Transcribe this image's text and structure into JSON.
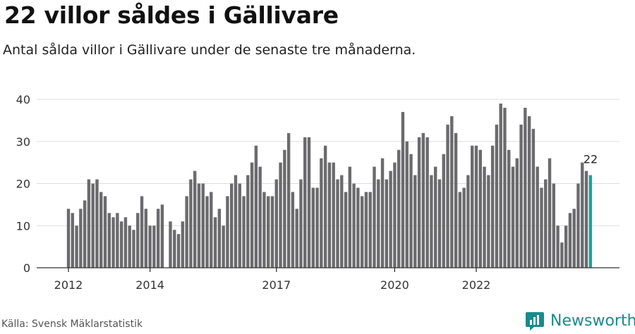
{
  "header": {
    "title": "22 villor såldes i Gällivare",
    "subtitle": "Antal sålda villor i Gällivare under de senaste tre månaderna."
  },
  "footer": {
    "source": "Källa: Svensk Mäklarstatistik",
    "brand": "Newsworthy"
  },
  "colors": {
    "bar": "#6b6b6e",
    "highlight": "#1aa39b",
    "grid": "#dddddd",
    "axis": "#333333",
    "brand": "#1a8a8a"
  },
  "chart_data": {
    "type": "bar",
    "title": "22 villor såldes i Gällivare",
    "xlabel": "",
    "ylabel": "",
    "ylim": [
      0,
      40
    ],
    "yticks": [
      0,
      10,
      20,
      30,
      40
    ],
    "xtick_labels": [
      {
        "label": "2012",
        "index": 0
      },
      {
        "label": "2014",
        "index": 20
      },
      {
        "label": "2017",
        "index": 51
      },
      {
        "label": "2020",
        "index": 80
      },
      {
        "label": "2022",
        "index": 100
      }
    ],
    "values": [
      14,
      13,
      10,
      14,
      16,
      21,
      20,
      21,
      18,
      17,
      13,
      12,
      13,
      11,
      12,
      10,
      9,
      13,
      17,
      14,
      10,
      10,
      14,
      15,
      0,
      11,
      9,
      8,
      11,
      17,
      21,
      23,
      20,
      20,
      17,
      18,
      12,
      14,
      10,
      17,
      20,
      22,
      20,
      17,
      22,
      25,
      29,
      24,
      18,
      17,
      17,
      21,
      25,
      28,
      32,
      18,
      14,
      21,
      31,
      31,
      19,
      19,
      26,
      29,
      25,
      25,
      21,
      22,
      18,
      24,
      20,
      19,
      17,
      18,
      18,
      24,
      21,
      26,
      21,
      23,
      25,
      28,
      37,
      30,
      27,
      22,
      31,
      32,
      31,
      22,
      24,
      21,
      27,
      34,
      36,
      32,
      18,
      19,
      22,
      29,
      29,
      28,
      24,
      22,
      29,
      34,
      39,
      38,
      28,
      24,
      26,
      34,
      38,
      36,
      33,
      24,
      19,
      21,
      26,
      20,
      10,
      6,
      10,
      13,
      14,
      20,
      25,
      23,
      22
    ],
    "highlight_last": true,
    "annotation": {
      "text": "22",
      "index": 128
    }
  }
}
